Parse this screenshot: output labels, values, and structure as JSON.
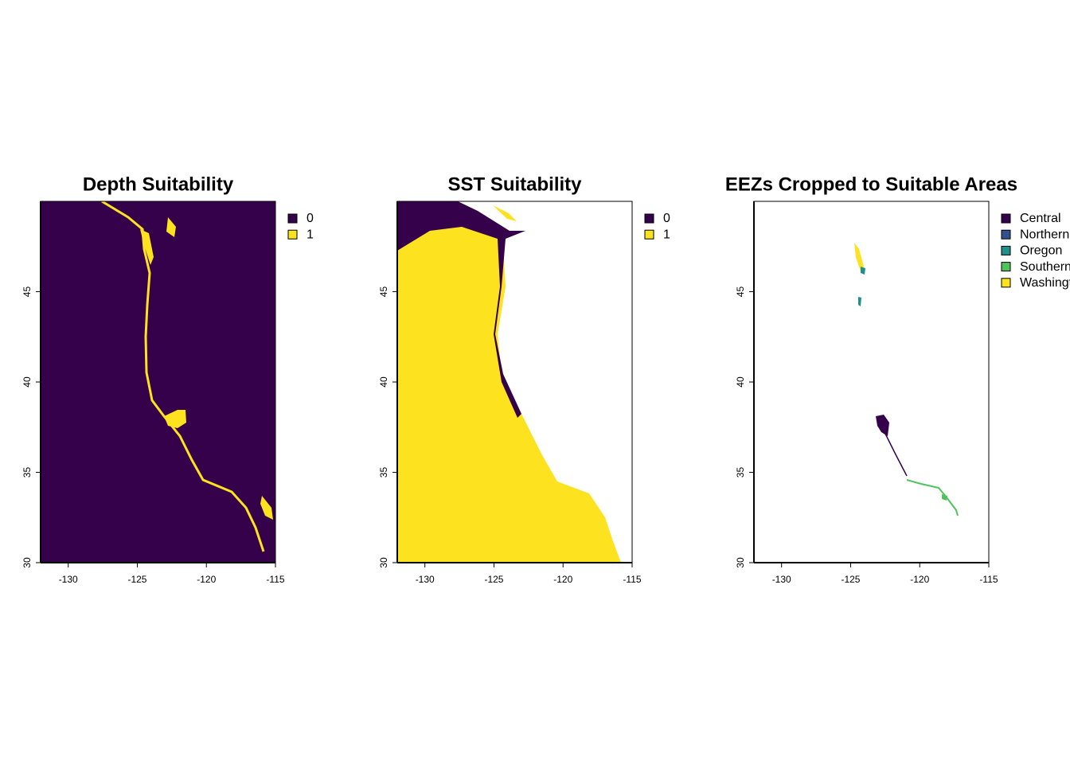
{
  "chart_data": [
    {
      "type": "map",
      "title": "Depth Suitability",
      "xlim": [
        -132,
        -115
      ],
      "ylim": [
        30,
        50
      ],
      "xticks": [
        -130,
        -125,
        -120,
        -115
      ],
      "yticks": [
        30,
        35,
        40,
        45
      ],
      "legend": [
        {
          "label": "0",
          "color": "#35014a"
        },
        {
          "label": "1",
          "color": "#fce21f"
        }
      ]
    },
    {
      "type": "map",
      "title": "SST Suitability",
      "xlim": [
        -132,
        -115
      ],
      "ylim": [
        30,
        50
      ],
      "xticks": [
        -130,
        -125,
        -120,
        -115
      ],
      "yticks": [
        30,
        35,
        40,
        45
      ],
      "legend": [
        {
          "label": "0",
          "color": "#35014a"
        },
        {
          "label": "1",
          "color": "#fce21f"
        }
      ]
    },
    {
      "type": "map",
      "title": "EEZs Cropped to Suitable Areas",
      "xlim": [
        -132,
        -115
      ],
      "ylim": [
        30,
        50
      ],
      "xticks": [
        -130,
        -125,
        -120,
        -115
      ],
      "yticks": [
        30,
        35,
        40,
        45
      ],
      "legend": [
        {
          "label": "Central",
          "color": "#35014a"
        },
        {
          "label": "Northern",
          "color": "#31508c"
        },
        {
          "label": "Oregon",
          "color": "#218f8b"
        },
        {
          "label": "Southern",
          "color": "#4fc35b"
        },
        {
          "label": "Washington",
          "color": "#fce21f"
        }
      ]
    }
  ]
}
